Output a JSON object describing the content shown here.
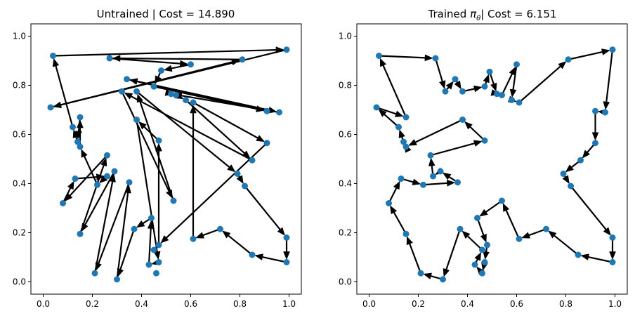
{
  "chart_data": [
    {
      "type": "scatter",
      "title": "Untrained | Cost = 14.890",
      "xlim": [
        -0.05,
        1.05
      ],
      "ylim": [
        -0.05,
        1.05
      ],
      "xticks": [
        "0.0",
        "0.2",
        "0.4",
        "0.6",
        "0.8",
        "1.0"
      ],
      "yticks": [
        "0.0",
        "0.2",
        "0.4",
        "0.6",
        "0.8",
        "1.0"
      ],
      "grid": false,
      "points": [
        [
          0.04,
          0.92
        ],
        [
          0.99,
          0.945
        ],
        [
          0.27,
          0.91
        ],
        [
          0.81,
          0.905
        ],
        [
          0.6,
          0.885
        ],
        [
          0.48,
          0.86
        ],
        [
          0.34,
          0.825
        ],
        [
          0.32,
          0.775
        ],
        [
          0.38,
          0.775
        ],
        [
          0.45,
          0.795
        ],
        [
          0.52,
          0.765
        ],
        [
          0.54,
          0.76
        ],
        [
          0.58,
          0.74
        ],
        [
          0.61,
          0.73
        ],
        [
          0.03,
          0.71
        ],
        [
          0.91,
          0.695
        ],
        [
          0.96,
          0.69
        ],
        [
          0.15,
          0.67
        ],
        [
          0.12,
          0.63
        ],
        [
          0.38,
          0.66
        ],
        [
          0.14,
          0.57
        ],
        [
          0.15,
          0.55
        ],
        [
          0.47,
          0.575
        ],
        [
          0.91,
          0.565
        ],
        [
          0.26,
          0.515
        ],
        [
          0.85,
          0.495
        ],
        [
          0.29,
          0.45
        ],
        [
          0.26,
          0.43
        ],
        [
          0.79,
          0.44
        ],
        [
          0.13,
          0.42
        ],
        [
          0.35,
          0.405
        ],
        [
          0.22,
          0.395
        ],
        [
          0.82,
          0.39
        ],
        [
          0.08,
          0.32
        ],
        [
          0.53,
          0.33
        ],
        [
          0.44,
          0.26
        ],
        [
          0.37,
          0.215
        ],
        [
          0.72,
          0.215
        ],
        [
          0.15,
          0.195
        ],
        [
          0.99,
          0.18
        ],
        [
          0.61,
          0.175
        ],
        [
          0.47,
          0.15
        ],
        [
          0.45,
          0.13
        ],
        [
          0.85,
          0.11
        ],
        [
          0.43,
          0.07
        ],
        [
          0.47,
          0.08
        ],
        [
          0.99,
          0.08
        ],
        [
          0.21,
          0.035
        ],
        [
          0.46,
          0.035
        ],
        [
          0.3,
          0.01
        ]
      ],
      "tour": [
        0,
        1,
        14,
        3,
        2,
        4,
        5,
        9,
        15,
        6,
        16,
        10,
        11,
        12,
        25,
        7,
        34,
        8,
        28,
        32,
        39,
        46,
        43,
        37,
        40,
        13,
        23,
        41,
        22,
        19,
        45,
        44,
        35,
        36,
        49,
        30,
        47,
        26,
        38,
        24,
        33,
        29,
        27,
        31,
        21,
        17,
        20,
        18,
        0
      ]
    },
    {
      "type": "scatter",
      "title_prefix": "Trained ",
      "title_symbol": "π",
      "title_subscript": "θ",
      "title_suffix": "| Cost = 6.151",
      "xlim": [
        -0.05,
        1.05
      ],
      "ylim": [
        -0.05,
        1.05
      ],
      "xticks": [
        "0.0",
        "0.2",
        "0.4",
        "0.6",
        "0.8",
        "1.0"
      ],
      "yticks": [
        "0.0",
        "0.2",
        "0.4",
        "0.6",
        "0.8",
        "1.0"
      ],
      "grid": false,
      "points": [
        [
          0.04,
          0.92
        ],
        [
          0.27,
          0.91
        ],
        [
          0.31,
          0.775
        ],
        [
          0.35,
          0.825
        ],
        [
          0.38,
          0.775
        ],
        [
          0.47,
          0.795
        ],
        [
          0.49,
          0.855
        ],
        [
          0.52,
          0.765
        ],
        [
          0.54,
          0.76
        ],
        [
          0.6,
          0.885
        ],
        [
          0.58,
          0.74
        ],
        [
          0.61,
          0.73
        ],
        [
          0.81,
          0.905
        ],
        [
          0.99,
          0.945
        ],
        [
          0.96,
          0.69
        ],
        [
          0.92,
          0.695
        ],
        [
          0.92,
          0.565
        ],
        [
          0.86,
          0.495
        ],
        [
          0.79,
          0.44
        ],
        [
          0.82,
          0.39
        ],
        [
          0.99,
          0.18
        ],
        [
          0.99,
          0.08
        ],
        [
          0.85,
          0.11
        ],
        [
          0.72,
          0.215
        ],
        [
          0.61,
          0.175
        ],
        [
          0.54,
          0.33
        ],
        [
          0.44,
          0.26
        ],
        [
          0.48,
          0.15
        ],
        [
          0.47,
          0.08
        ],
        [
          0.46,
          0.035
        ],
        [
          0.43,
          0.07
        ],
        [
          0.46,
          0.13
        ],
        [
          0.37,
          0.215
        ],
        [
          0.3,
          0.01
        ],
        [
          0.21,
          0.035
        ],
        [
          0.15,
          0.195
        ],
        [
          0.08,
          0.32
        ],
        [
          0.13,
          0.42
        ],
        [
          0.22,
          0.395
        ],
        [
          0.36,
          0.405
        ],
        [
          0.29,
          0.45
        ],
        [
          0.26,
          0.43
        ],
        [
          0.25,
          0.515
        ],
        [
          0.47,
          0.575
        ],
        [
          0.38,
          0.66
        ],
        [
          0.15,
          0.55
        ],
        [
          0.14,
          0.57
        ],
        [
          0.12,
          0.63
        ],
        [
          0.03,
          0.71
        ],
        [
          0.15,
          0.67
        ]
      ],
      "tour": [
        0,
        1,
        2,
        3,
        4,
        5,
        6,
        7,
        8,
        9,
        10,
        11,
        12,
        13,
        14,
        15,
        16,
        17,
        18,
        19,
        20,
        21,
        22,
        23,
        24,
        25,
        26,
        27,
        28,
        29,
        30,
        31,
        32,
        33,
        34,
        35,
        36,
        37,
        38,
        39,
        40,
        41,
        42,
        43,
        44,
        45,
        46,
        47,
        48,
        49,
        0
      ]
    }
  ]
}
